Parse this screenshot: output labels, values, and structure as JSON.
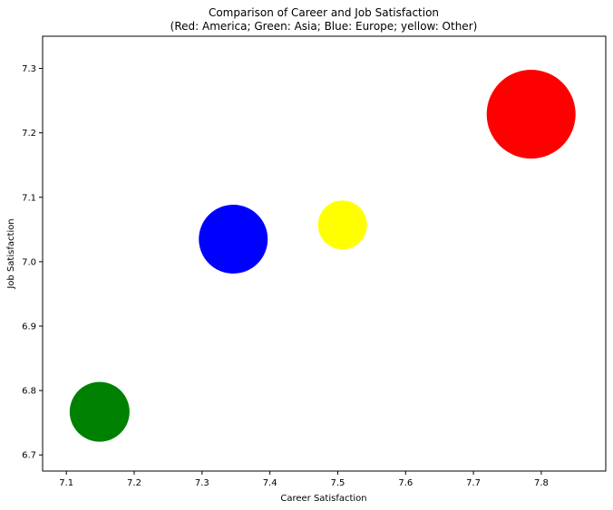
{
  "chart_data": {
    "type": "scatter",
    "title": "Comparison of Career and Job Satisfaction",
    "subtitle": "(Red: America; Green: Asia; Blue: Europe; yellow: Other)",
    "xlabel": "Career Satisfaction",
    "ylabel": "Job Satisfaction",
    "xlim": [
      7.065,
      7.895
    ],
    "ylim": [
      6.675,
      7.35
    ],
    "xticks": [
      7.1,
      7.2,
      7.3,
      7.4,
      7.5,
      7.6,
      7.7,
      7.8
    ],
    "yticks": [
      6.7,
      6.8,
      6.9,
      7.0,
      7.1,
      7.2,
      7.3
    ],
    "xtick_labels": [
      "7.1",
      "7.2",
      "7.3",
      "7.4",
      "7.5",
      "7.6",
      "7.7",
      "7.8"
    ],
    "ytick_labels": [
      "6.7",
      "6.8",
      "6.9",
      "7.0",
      "7.1",
      "7.2",
      "7.3"
    ],
    "grid": false,
    "points": [
      {
        "x": 7.785,
        "y": 7.229,
        "size": 49,
        "color": "#ff0000"
      },
      {
        "x": 7.149,
        "y": 6.767,
        "size": 33,
        "color": "#008000"
      },
      {
        "x": 7.346,
        "y": 7.035,
        "size": 38,
        "color": "#0000ff"
      },
      {
        "x": 7.507,
        "y": 7.057,
        "size": 27,
        "color": "#ffff00"
      }
    ]
  }
}
